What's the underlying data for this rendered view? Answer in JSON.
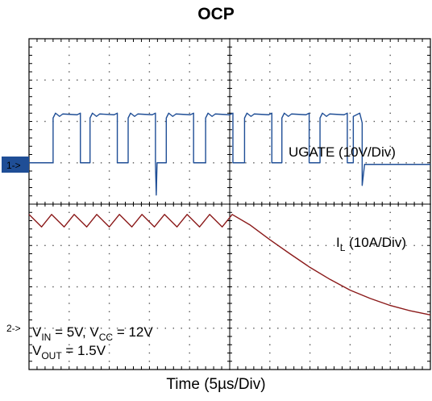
{
  "chart_data": {
    "type": "line",
    "title": "OCP",
    "xlabel": "Time (5µs/Div)",
    "x_divisions": 10,
    "y_divisions": 8,
    "grid": true,
    "channels": [
      {
        "id": "1",
        "marker": "1->",
        "name_parts": {
          "main": "UGATE",
          "scale": " (10V/Div)"
        },
        "color": "#1f4e96",
        "baseline_div": 3.0,
        "pulse_high_div": 1.8,
        "pulses_start_div": [
          0.6,
          1.52,
          2.47,
          3.42,
          4.4,
          5.37,
          6.3,
          7.25
        ],
        "pulse_width_div": 0.68,
        "dropout_div": 8.18
      },
      {
        "id": "2",
        "marker": "2->",
        "name_parts": {
          "main": "I",
          "sub": "L",
          "scale": " (10A/Div)"
        },
        "color": "#8b1a1a",
        "x_div": [
          0,
          0.5,
          0.9,
          1.4,
          1.8,
          2.3,
          2.7,
          3.2,
          3.6,
          4.1,
          4.5,
          5.0,
          5.4,
          5.9,
          6.3,
          6.8,
          7.2,
          7.7,
          8.1,
          8.8,
          9.6,
          10.4,
          11.2,
          12.0,
          12.8,
          13.6,
          14.4,
          15.2,
          16.0
        ],
        "y_div": [
          4.25,
          4.55,
          4.25,
          4.55,
          4.25,
          4.55,
          4.25,
          4.55,
          4.25,
          4.55,
          4.25,
          4.55,
          4.25,
          4.55,
          4.25,
          4.55,
          4.25,
          4.55,
          4.25,
          4.5,
          4.86,
          5.2,
          5.53,
          5.82,
          6.08,
          6.28,
          6.45,
          6.58,
          6.68
        ]
      }
    ],
    "annotation": {
      "vin_line": {
        "a": "V",
        "a_sub": "IN",
        "b": " = 5V, V",
        "b_sub": "CC",
        "c": " = 12V"
      },
      "vout_line": {
        "a": "V",
        "a_sub": "OUT",
        "b": " = 1.5V"
      }
    }
  }
}
